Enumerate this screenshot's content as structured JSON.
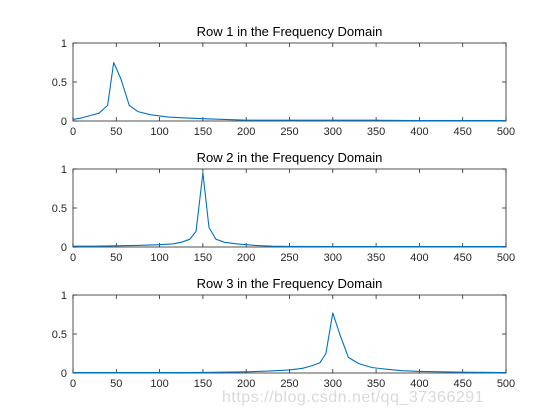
{
  "colors": {
    "series": "#0072BD",
    "axis": "#262626",
    "background": "#ffffff"
  },
  "watermark": "https://blog.csdn.net/qq_37366291",
  "chart_data": [
    {
      "type": "line",
      "title": "Row 1 in the Frequency Domain",
      "xlabel": "",
      "ylabel": "",
      "xlim": [
        0,
        500
      ],
      "ylim": [
        0,
        1
      ],
      "xticks": [
        0,
        50,
        100,
        150,
        200,
        250,
        300,
        350,
        400,
        450,
        500
      ],
      "yticks": [
        0,
        0.5,
        1
      ],
      "grid": false,
      "series": [
        {
          "x": [
            0,
            10,
            20,
            30,
            40,
            47,
            55,
            65,
            75,
            90,
            110,
            130,
            150,
            175,
            200,
            250,
            300,
            350,
            400,
            450,
            500
          ],
          "y": [
            0.02,
            0.04,
            0.07,
            0.1,
            0.2,
            0.75,
            0.55,
            0.2,
            0.12,
            0.08,
            0.05,
            0.04,
            0.03,
            0.02,
            0.01,
            0.01,
            0.01,
            0.01,
            0.005,
            0.005,
            0.005
          ]
        }
      ]
    },
    {
      "type": "line",
      "title": "Row 2 in the Frequency Domain",
      "xlabel": "",
      "ylabel": "",
      "xlim": [
        0,
        500
      ],
      "ylim": [
        0,
        1
      ],
      "xticks": [
        0,
        50,
        100,
        150,
        200,
        250,
        300,
        350,
        400,
        450,
        500
      ],
      "yticks": [
        0,
        0.5,
        1
      ],
      "grid": false,
      "series": [
        {
          "x": [
            0,
            25,
            50,
            75,
            100,
            115,
            125,
            135,
            142,
            150,
            157,
            165,
            175,
            190,
            210,
            230,
            250,
            300,
            350,
            400,
            450,
            500
          ],
          "y": [
            0.01,
            0.01,
            0.015,
            0.02,
            0.03,
            0.04,
            0.06,
            0.1,
            0.2,
            0.95,
            0.25,
            0.1,
            0.06,
            0.04,
            0.02,
            0.01,
            0.008,
            0.005,
            0.005,
            0.005,
            0.005,
            0.005
          ]
        }
      ]
    },
    {
      "type": "line",
      "title": "Row 3 in the Frequency Domain",
      "xlabel": "",
      "ylabel": "",
      "xlim": [
        0,
        500
      ],
      "ylim": [
        0,
        1
      ],
      "xticks": [
        0,
        50,
        100,
        150,
        200,
        250,
        300,
        350,
        400,
        450,
        500
      ],
      "yticks": [
        0,
        0.5,
        1
      ],
      "grid": false,
      "series": [
        {
          "x": [
            0,
            50,
            100,
            150,
            200,
            225,
            250,
            265,
            275,
            285,
            292,
            300,
            308,
            318,
            330,
            345,
            360,
            380,
            400,
            450,
            500
          ],
          "y": [
            0.005,
            0.005,
            0.005,
            0.008,
            0.015,
            0.025,
            0.04,
            0.06,
            0.09,
            0.13,
            0.25,
            0.77,
            0.5,
            0.2,
            0.12,
            0.07,
            0.05,
            0.03,
            0.02,
            0.01,
            0.005
          ]
        }
      ]
    }
  ]
}
